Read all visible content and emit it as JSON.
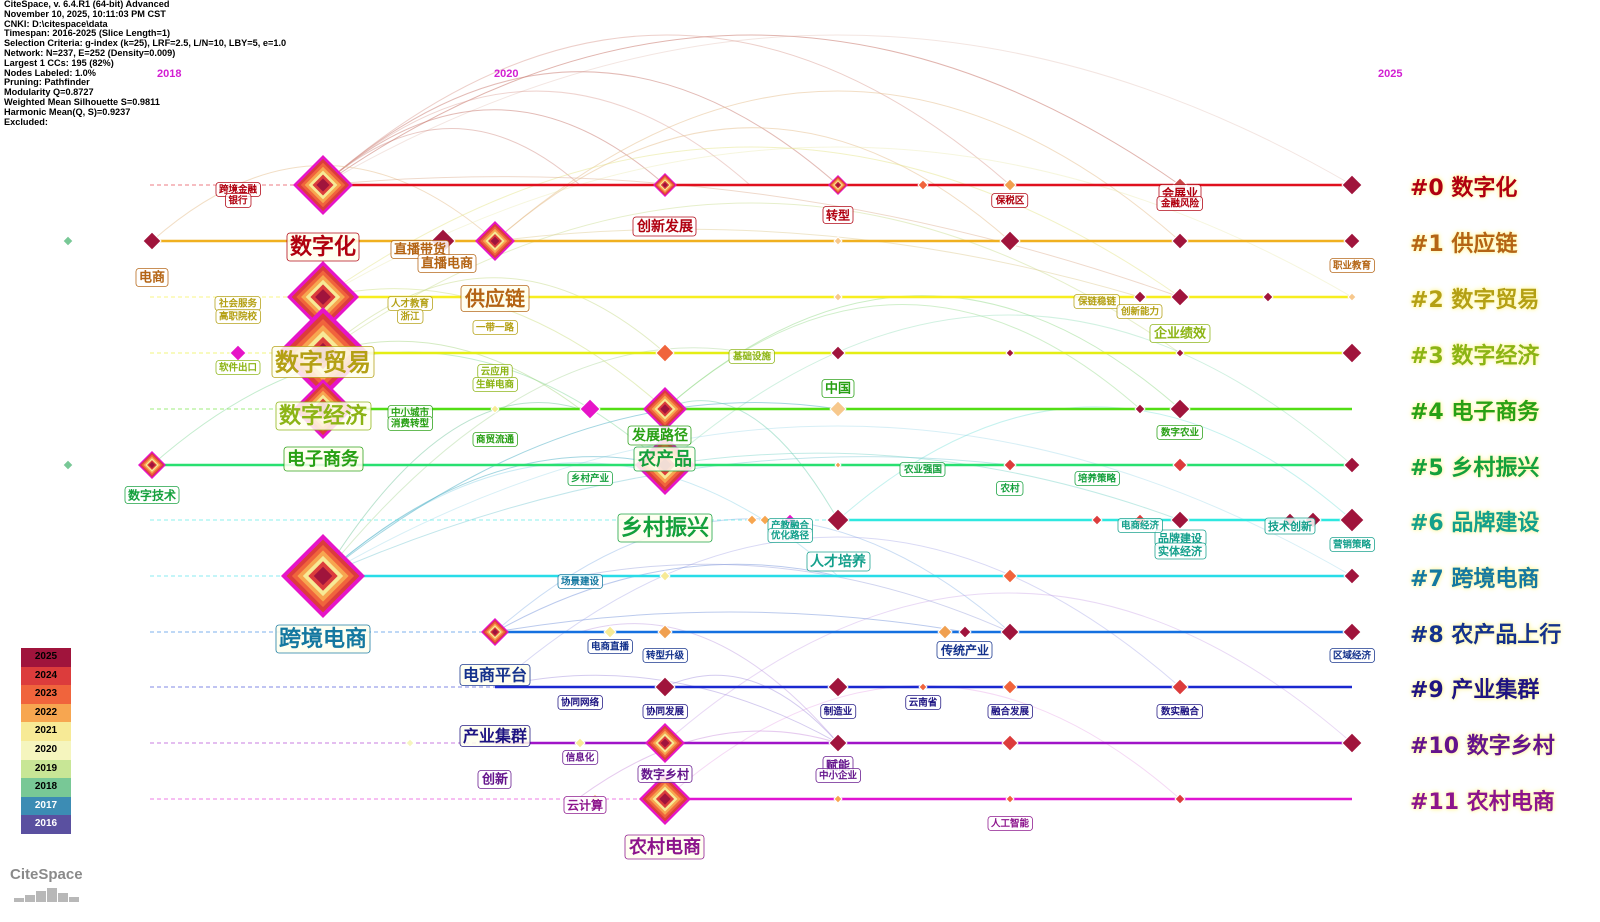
{
  "info": {
    "lines": [
      "CiteSpace, v. 6.4.R1 (64-bit) Advanced",
      "November 10, 2025, 10:11:03 PM CST",
      "CNKI: D:\\citespace\\data",
      "Timespan: 2016-2025 (Slice Length=1)",
      "Selection Criteria: g-index (k=25), LRF=2.5, L/N=10, LBY=5, e=1.0",
      "Network: N=237, E=252 (Density=0.009)",
      "Largest 1 CCs: 195 (82%)",
      "Nodes Labeled: 1.0%",
      "Pruning: Pathfinder",
      "Modularity Q=0.8727",
      "Weighted Mean Silhouette S=0.9811",
      "Harmonic Mean(Q, S)=0.9237",
      "Excluded:"
    ]
  },
  "timeline": {
    "start_year": 2016,
    "end_year": 2025,
    "year_ticks": [
      "2018",
      "2020",
      "2025"
    ],
    "tick_color": "#d21ed2"
  },
  "clusters": [
    {
      "label": "#0 数字化",
      "color": "#b0000f",
      "line": "#e0101e"
    },
    {
      "label": "#1 供应链",
      "color": "#b46414",
      "line": "#f0b020"
    },
    {
      "label": "#2 数字贸易",
      "color": "#b4a014",
      "line": "#f7ee20"
    },
    {
      "label": "#3 数字经济",
      "color": "#8cb414",
      "line": "#e4ee14"
    },
    {
      "label": "#4 电子商务",
      "color": "#28a014",
      "line": "#52de14"
    },
    {
      "label": "#5 乡村振兴",
      "color": "#14a03c",
      "line": "#28e070"
    },
    {
      "label": "#6 品牌建设",
      "color": "#14a08c",
      "line": "#2ee8e0"
    },
    {
      "label": "#7 跨境电商",
      "color": "#1478a0",
      "line": "#28dce8"
    },
    {
      "label": "#8 农产品上行",
      "color": "#14328c",
      "line": "#1470e0"
    },
    {
      "label": "#9 产业集群",
      "color": "#1e1482",
      "line": "#1a28d0"
    },
    {
      "label": "#10 数字乡村",
      "color": "#64148c",
      "line": "#a014c8"
    },
    {
      "label": "#11 农村电商",
      "color": "#8c148c",
      "line": "#e014d2"
    }
  ],
  "big_labels": [
    {
      "text": "数字化",
      "cluster": 0
    },
    {
      "text": "供应链",
      "cluster": 1
    },
    {
      "text": "数字贸易",
      "cluster": 2
    },
    {
      "text": "数字经济",
      "cluster": 3
    },
    {
      "text": "电子商务",
      "cluster": 4
    },
    {
      "text": "农产品",
      "cluster": 5
    },
    {
      "text": "乡村振兴",
      "cluster": 5
    },
    {
      "text": "跨境电商",
      "cluster": 7
    },
    {
      "text": "电商平台",
      "cluster": 8
    },
    {
      "text": "产业集群",
      "cluster": 9
    },
    {
      "text": "农村电商",
      "cluster": 11
    },
    {
      "text": "创新发展",
      "cluster": 0
    },
    {
      "text": "直播带货",
      "cluster": 1
    },
    {
      "text": "直播电商",
      "cluster": 1
    },
    {
      "text": "发展路径",
      "cluster": 4
    },
    {
      "text": "人才培养",
      "cluster": 6
    },
    {
      "text": "中国",
      "cluster": 4
    },
    {
      "text": "企业绩效",
      "cluster": 3
    },
    {
      "text": "会展业",
      "cluster": 0
    },
    {
      "text": "转型",
      "cluster": 0
    },
    {
      "text": "电商",
      "cluster": 1
    },
    {
      "text": "数字技术",
      "cluster": 5
    },
    {
      "text": "传统产业",
      "cluster": 8
    },
    {
      "text": "创新",
      "cluster": 10
    },
    {
      "text": "云计算",
      "cluster": 11
    },
    {
      "text": "赋能",
      "cluster": 10
    },
    {
      "text": "数字乡村",
      "cluster": 10
    },
    {
      "text": "品牌建设",
      "cluster": 6
    },
    {
      "text": "技术创新",
      "cluster": 6
    },
    {
      "text": "实体经济",
      "cluster": 6
    }
  ],
  "small_labels": [
    {
      "text": "跨境金融",
      "cluster": 0
    },
    {
      "text": "银行",
      "cluster": 0
    },
    {
      "text": "金融风险",
      "cluster": 0
    },
    {
      "text": "保税区",
      "cluster": 0
    },
    {
      "text": "社会服务",
      "cluster": 2
    },
    {
      "text": "高职院校",
      "cluster": 2
    },
    {
      "text": "人才教育",
      "cluster": 2
    },
    {
      "text": "浙江",
      "cluster": 2
    },
    {
      "text": "软件出口",
      "cluster": 3
    },
    {
      "text": "一带一路",
      "cluster": 2
    },
    {
      "text": "保链稳链",
      "cluster": 2
    },
    {
      "text": "创新能力",
      "cluster": 2
    },
    {
      "text": "基础设施",
      "cluster": 3
    },
    {
      "text": "中小城市",
      "cluster": 4
    },
    {
      "text": "消费转型",
      "cluster": 4
    },
    {
      "text": "云应用",
      "cluster": 3
    },
    {
      "text": "生鲜电商",
      "cluster": 3
    },
    {
      "text": "商贸流通",
      "cluster": 4
    },
    {
      "text": "数字农业",
      "cluster": 4
    },
    {
      "text": "乡村产业",
      "cluster": 5
    },
    {
      "text": "农业强国",
      "cluster": 5
    },
    {
      "text": "农村",
      "cluster": 5
    },
    {
      "text": "培养策略",
      "cluster": 5
    },
    {
      "text": "产教融合",
      "cluster": 6
    },
    {
      "text": "优化路径",
      "cluster": 6
    },
    {
      "text": "电商经济",
      "cluster": 6
    },
    {
      "text": "营销策略",
      "cluster": 6
    },
    {
      "text": "场景建设",
      "cluster": 7
    },
    {
      "text": "电商直播",
      "cluster": 8
    },
    {
      "text": "转型升级",
      "cluster": 8
    },
    {
      "text": "区域经济",
      "cluster": 8
    },
    {
      "text": "协同网络",
      "cluster": 9
    },
    {
      "text": "协同发展",
      "cluster": 9
    },
    {
      "text": "制造业",
      "cluster": 9
    },
    {
      "text": "云南省",
      "cluster": 9
    },
    {
      "text": "融合发展",
      "cluster": 9
    },
    {
      "text": "数实融合",
      "cluster": 9
    },
    {
      "text": "信息化",
      "cluster": 10
    },
    {
      "text": "中小企业",
      "cluster": 10
    },
    {
      "text": "人工智能",
      "cluster": 11
    },
    {
      "text": "职业教育",
      "cluster": 1
    }
  ],
  "legend": {
    "years": [
      "2025",
      "2024",
      "2023",
      "2022",
      "2021",
      "2020",
      "2019",
      "2018",
      "2017",
      "2016"
    ],
    "colors": [
      "#a0143c",
      "#dc3c3c",
      "#f0643c",
      "#f7a650",
      "#f7ea96",
      "#f5f5be",
      "#c8e696",
      "#78c896",
      "#3c8cb4",
      "#5a50a0"
    ]
  },
  "logo": {
    "text": "CiteSpace"
  }
}
